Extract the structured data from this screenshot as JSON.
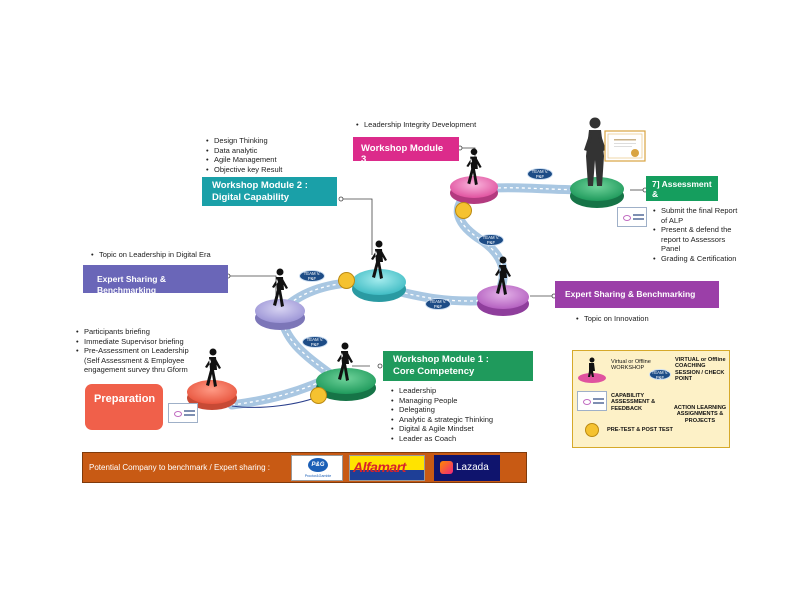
{
  "modules": {
    "m1": {
      "title": "Workshop Module 1 :",
      "subtitle": "Core Competency"
    },
    "m2": {
      "title": "Workshop Module 2 :",
      "subtitle": "Digital Capability"
    },
    "m3": {
      "title": "Workshop Module 3"
    },
    "expert_top": {
      "title": "Expert Sharing  & Benchmarking"
    },
    "expert_right": {
      "title": "Expert Sharing &  Benchmarking"
    },
    "preparation": {
      "title": "Preparation"
    },
    "assessment": {
      "title": "7] Assessment &"
    }
  },
  "notes": {
    "m1_items": [
      "Leadership",
      "Managing People",
      "Delegating",
      "Analytic & strategic Thinking",
      "Digital & Agile Mindset",
      "Leader as Coach"
    ],
    "m2_items": [
      "Design Thinking",
      "Data analytic",
      "Agile Management",
      "Objective key Result"
    ],
    "m3_note": "Leadership Integrity Development",
    "expert_top_note": "Topic on Leadership in Digital Era",
    "expert_right_note": "Topic on Innovation",
    "prep_items": [
      "Participants briefing",
      "Immediate Supervisor briefing",
      "Pre-Assessment on Leadership (Self Assessment & Employee engagement survey thru Gform"
    ],
    "assessment_items": [
      "Submit the final Report of ALP",
      "Present & defend the report to Assessors Panel",
      "Grading & Certification"
    ]
  },
  "team_label": "TEAM V. P&F",
  "legend": {
    "workshop": "Virtual or Offline WORKSHOP",
    "coaching": "VIRTUAL or Offline COACHING SESSION / CHECK POINT",
    "capability": "CAPABILITY ASSESSMENT & FEEDBACK",
    "action": "ACTION LEARNING ASSIGNMENTS & PROJECTS",
    "pretest": "PRE-TEST & POST TEST"
  },
  "banner": {
    "label": "Potential Company to benchmark / Expert sharing :",
    "logos": {
      "pg": "P&G",
      "pg_sub": "Proctor&Gamble",
      "alfamart": "Alfamart",
      "lazada": "Lazada"
    }
  },
  "colors": {
    "m1": "#1f9a5c",
    "m2": "#1aa0a8",
    "m3": "#dc2b8b",
    "expert": "#6a66b8",
    "expert_right": "#9b3fa8",
    "prep": "#f0604a",
    "assess": "#159e5e",
    "path": "#a9c7e2",
    "banner": "#c85a14"
  }
}
